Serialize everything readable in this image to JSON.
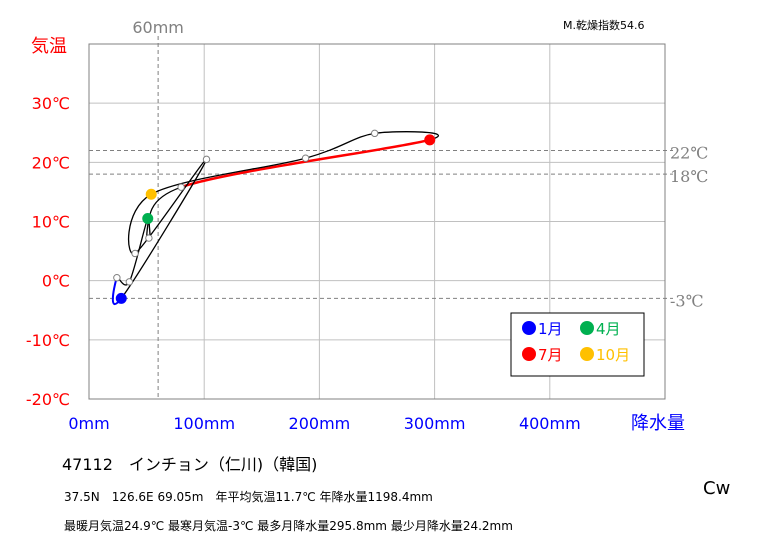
{
  "chart_data": {
    "type": "line",
    "y_axis_title": "気温",
    "x_axis_title": "降水量",
    "xlim": [
      0,
      500
    ],
    "ylim": [
      -20,
      40
    ],
    "x_ticks": [
      {
        "value": 0,
        "label": "0mm"
      },
      {
        "value": 100,
        "label": "100mm"
      },
      {
        "value": 200,
        "label": "200mm"
      },
      {
        "value": 300,
        "label": "300mm"
      },
      {
        "value": 400,
        "label": "400mm"
      }
    ],
    "y_ticks": [
      {
        "value": 30,
        "label": "30℃"
      },
      {
        "value": 20,
        "label": "20℃"
      },
      {
        "value": 10,
        "label": "10℃"
      },
      {
        "value": 0,
        "label": "0℃"
      },
      {
        "value": -10,
        "label": "-10℃"
      },
      {
        "value": -20,
        "label": "-20℃"
      }
    ],
    "grid": true,
    "reference_lines": [
      {
        "axis": "x",
        "value": 60,
        "label": "60mm"
      },
      {
        "axis": "y",
        "value": 22,
        "label": "22℃"
      },
      {
        "axis": "y",
        "value": 18,
        "label": "18℃"
      },
      {
        "axis": "y",
        "value": -3,
        "label": "-3℃"
      }
    ],
    "months": [
      {
        "month": 1,
        "precip": 28,
        "temp": -3
      },
      {
        "month": 2,
        "precip": 24.2,
        "temp": 0.5
      },
      {
        "month": 3,
        "precip": 35,
        "temp": -0.2
      },
      {
        "month": 4,
        "precip": 51,
        "temp": 10.5
      },
      {
        "month": 5,
        "precip": 52,
        "temp": 7.2
      },
      {
        "month": 6,
        "precip": 80,
        "temp": 15.8
      },
      {
        "month": 7,
        "precip": 295.8,
        "temp": 23.8
      },
      {
        "month": 8,
        "precip": 248,
        "temp": 24.9
      },
      {
        "month": 9,
        "precip": 188,
        "temp": 20.7
      },
      {
        "month": 10,
        "precip": 54,
        "temp": 14.6
      },
      {
        "month": 11,
        "precip": 40,
        "temp": 4.6
      },
      {
        "month": 12,
        "precip": 102,
        "temp": 20.5
      }
    ],
    "legend": {
      "position": "bottom-right",
      "entries": [
        {
          "month": 1,
          "label": "1月",
          "color": "#0000ff"
        },
        {
          "month": 4,
          "label": "4月",
          "color": "#00b050"
        },
        {
          "month": 7,
          "label": "7月",
          "color": "#ff0000"
        },
        {
          "month": 10,
          "label": "10月",
          "color": "#ffc000"
        }
      ]
    },
    "colors": {
      "temp_axis": "#ff0000",
      "precip_axis": "#0000ff",
      "line": "#000000",
      "segment_jan_feb": "#0000ff",
      "segment_jun_jul": "#ff0000",
      "reference": "#808080"
    }
  },
  "header": {
    "dryness": "M.乾燥指数54.6"
  },
  "station": {
    "title": "47112　インチョン（仁川)（韓国)",
    "line1": "37.5N　126.6E 69.05m　年平均気温11.7℃ 年降水量1198.4mm",
    "line2": "最暖月気温24.9℃ 最寒月気温-3℃ 最多月降水量295.8mm 最少月降水量24.2mm",
    "climate": "Cw"
  }
}
